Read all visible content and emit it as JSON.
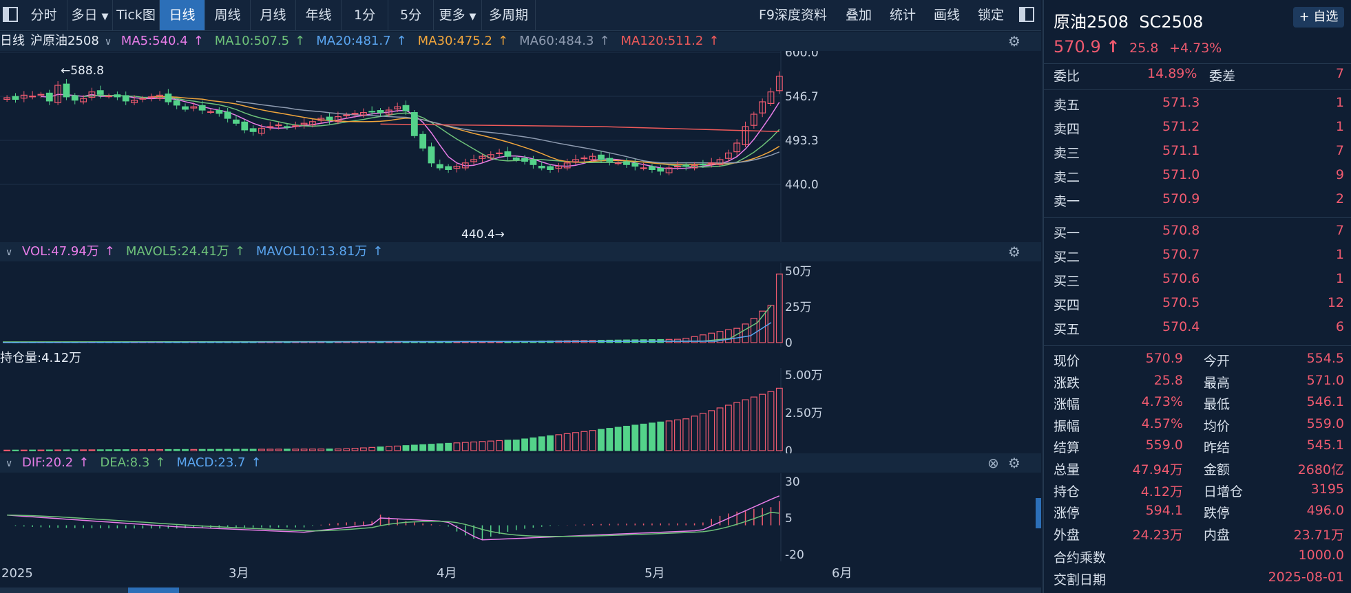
{
  "toolbar": {
    "tabs": [
      "分时",
      "多日",
      "Tick图",
      "日线",
      "周线",
      "月线",
      "年线",
      "1分",
      "5分",
      "更多",
      "多周期"
    ],
    "active": "日线",
    "right": [
      "F9深度资料",
      "叠加",
      "统计",
      "画线",
      "锁定"
    ]
  },
  "kline_header": {
    "period": "日线",
    "name": "沪原油2508",
    "ma5": "MA5:540.4",
    "ma10": "MA10:507.5",
    "ma20": "MA20:481.7",
    "ma30": "MA30:475.2",
    "ma60": "MA60:484.3",
    "ma120": "MA120:511.2",
    "arrow": "↑"
  },
  "vol_header": {
    "vol": "VOL:47.94万",
    "mavol5": "MAVOL5:24.41万",
    "mavol10": "MAVOL10:13.81万"
  },
  "oi_header": {
    "oi": "持仓量:4.12万"
  },
  "macd_header": {
    "dif": "DIF:20.2",
    "dea": "DEA:8.3",
    "macd": "MACD:23.7"
  },
  "chart_data": [
    {
      "type": "candlestick",
      "title": "沪原油2508 日线",
      "yticks": [
        "600.0",
        "546.7",
        "493.3",
        "440.0"
      ],
      "ylim": [
        440,
        600
      ],
      "annotations": {
        "high": "←588.8",
        "low": "440.4→"
      },
      "last": {
        "open": 554.5,
        "high": 571.0,
        "low": 546.1,
        "close": 570.9
      }
    },
    {
      "type": "bar",
      "title": "VOL",
      "yticks": [
        "50万",
        "25万",
        "0"
      ]
    },
    {
      "type": "bar",
      "title": "持仓量",
      "yticks": [
        "5.00万",
        "2.50万",
        "0"
      ]
    },
    {
      "type": "bar",
      "title": "MACD",
      "yticks": [
        "30",
        "5",
        "-20"
      ]
    }
  ],
  "xaxis": {
    "labels": [
      "2025",
      "3月",
      "4月",
      "5月",
      "6月"
    ]
  },
  "quote": {
    "name": "原油2508",
    "code": "SC2508",
    "add_btn": "+ 自选",
    "price": "570.9",
    "arrow": "↑",
    "change": "25.8",
    "pct": "+4.73%",
    "weibi_lbl": "委比",
    "weibi": "14.89%",
    "weicha_lbl": "委差",
    "weicha": "7",
    "asks": [
      [
        "卖五",
        "571.3",
        "1"
      ],
      [
        "卖四",
        "571.2",
        "1"
      ],
      [
        "卖三",
        "571.1",
        "7"
      ],
      [
        "卖二",
        "571.0",
        "9"
      ],
      [
        "卖一",
        "570.9",
        "2"
      ]
    ],
    "bids": [
      [
        "买一",
        "570.8",
        "7"
      ],
      [
        "买二",
        "570.7",
        "1"
      ],
      [
        "买三",
        "570.6",
        "1"
      ],
      [
        "买四",
        "570.5",
        "12"
      ],
      [
        "买五",
        "570.4",
        "6"
      ]
    ],
    "stats": [
      [
        "现价",
        "570.9",
        "red",
        "今开",
        "554.5",
        "red"
      ],
      [
        "涨跌",
        "25.8",
        "red",
        "最高",
        "571.0",
        "red"
      ],
      [
        "涨幅",
        "4.73%",
        "red",
        "最低",
        "546.1",
        "red"
      ],
      [
        "振幅",
        "4.57%",
        "white",
        "均价",
        "559.0",
        "red"
      ],
      [
        "结算",
        "559.0",
        "white",
        "昨结",
        "545.1",
        "white"
      ],
      [
        "总量",
        "47.94万",
        "blue",
        "金额",
        "2680亿",
        "blue"
      ],
      [
        "持仓",
        "4.12万",
        "white",
        "日增仓",
        "3195",
        "white"
      ],
      [
        "涨停",
        "594.1",
        "red",
        "跌停",
        "496.0",
        "green"
      ],
      [
        "外盘",
        "24.23万",
        "red",
        "内盘",
        "23.71万",
        "green"
      ]
    ],
    "multiplier_lbl": "合约乘数",
    "multiplier": "1000.0",
    "delivery_lbl": "交割日期",
    "delivery": "2025-08-01"
  }
}
